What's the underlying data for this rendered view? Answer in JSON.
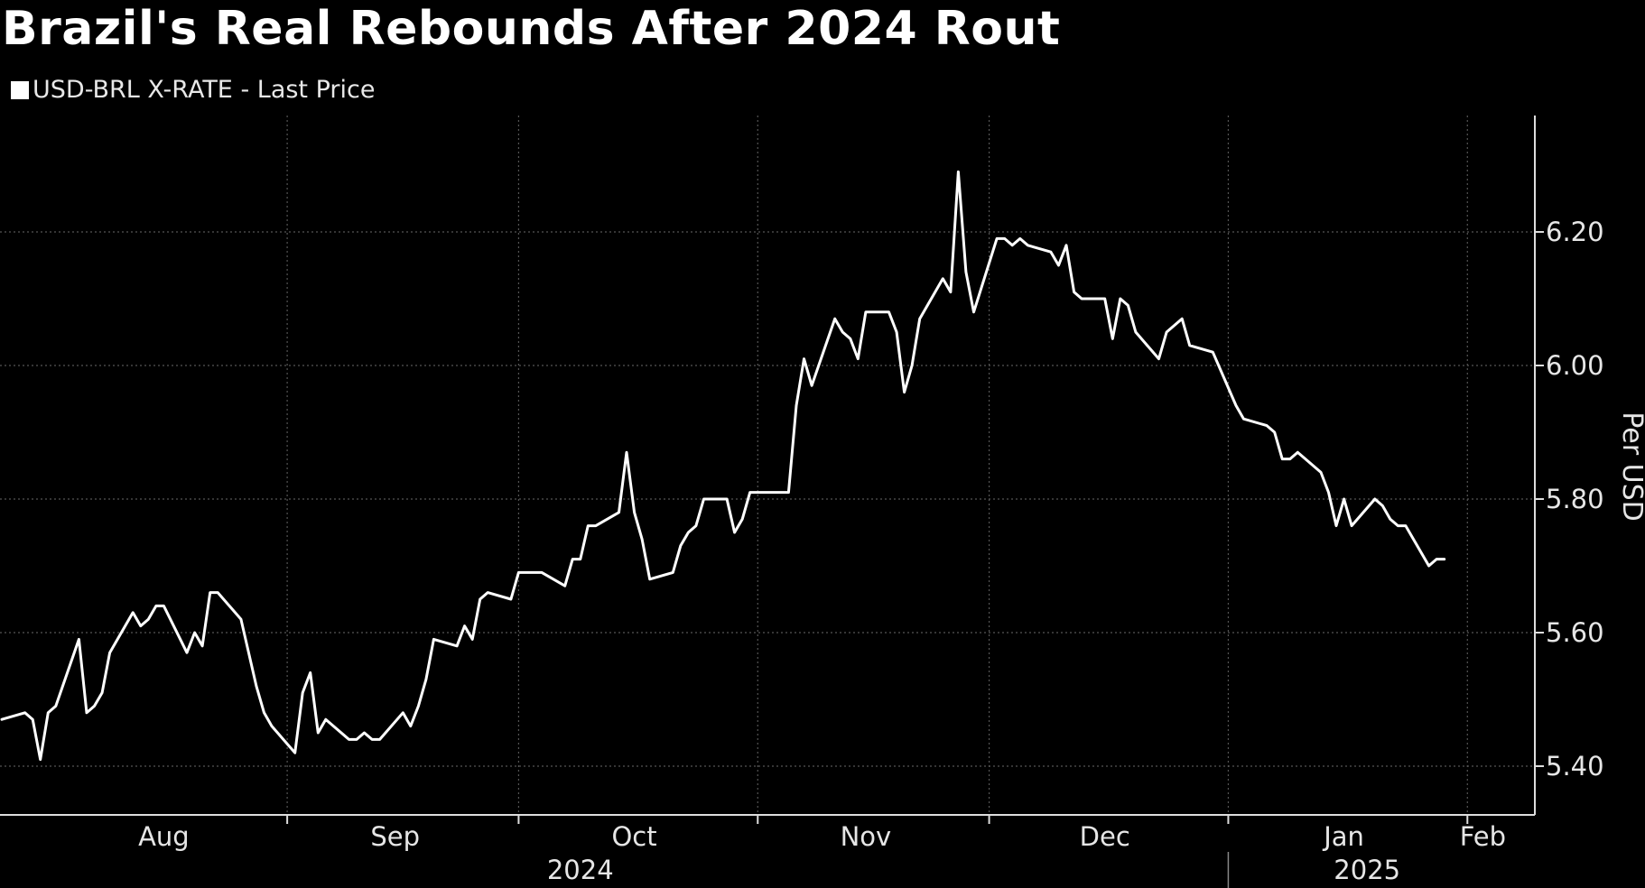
{
  "chart_data": {
    "type": "line",
    "title": "Brazil's Real Rebounds After 2024 Rout",
    "ylabel": "Per USD",
    "xlabel": "",
    "ylim": [
      5.33,
      6.37
    ],
    "yticks": [
      "5.40",
      "5.60",
      "5.80",
      "6.00",
      "6.20"
    ],
    "grid": true,
    "legend_position": "top-left",
    "line_color": "#ffffff",
    "month_labels": [
      "Aug",
      "Sep",
      "Oct",
      "Nov",
      "Dec",
      "Jan",
      "Feb"
    ],
    "year_labels": [
      "2024",
      "2025"
    ],
    "series": [
      {
        "name": "USD-BRL X-RATE - Last Price",
        "points": [
          [
            "2024-07-26",
            5.47
          ],
          [
            "2024-07-29",
            5.48
          ],
          [
            "2024-07-30",
            5.47
          ],
          [
            "2024-07-31",
            5.41
          ],
          [
            "2024-08-01",
            5.48
          ],
          [
            "2024-08-02",
            5.49
          ],
          [
            "2024-08-05",
            5.59
          ],
          [
            "2024-08-06",
            5.48
          ],
          [
            "2024-08-07",
            5.49
          ],
          [
            "2024-08-08",
            5.51
          ],
          [
            "2024-08-09",
            5.57
          ],
          [
            "2024-08-12",
            5.63
          ],
          [
            "2024-08-13",
            5.61
          ],
          [
            "2024-08-14",
            5.62
          ],
          [
            "2024-08-15",
            5.64
          ],
          [
            "2024-08-16",
            5.64
          ],
          [
            "2024-08-19",
            5.57
          ],
          [
            "2024-08-20",
            5.6
          ],
          [
            "2024-08-21",
            5.58
          ],
          [
            "2024-08-22",
            5.66
          ],
          [
            "2024-08-23",
            5.66
          ],
          [
            "2024-08-26",
            5.62
          ],
          [
            "2024-08-27",
            5.57
          ],
          [
            "2024-08-28",
            5.52
          ],
          [
            "2024-08-29",
            5.48
          ],
          [
            "2024-08-30",
            5.46
          ],
          [
            "2024-09-02",
            5.42
          ],
          [
            "2024-09-03",
            5.51
          ],
          [
            "2024-09-04",
            5.54
          ],
          [
            "2024-09-05",
            5.45
          ],
          [
            "2024-09-06",
            5.47
          ],
          [
            "2024-09-09",
            5.44
          ],
          [
            "2024-09-10",
            5.44
          ],
          [
            "2024-09-11",
            5.45
          ],
          [
            "2024-09-12",
            5.44
          ],
          [
            "2024-09-13",
            5.44
          ],
          [
            "2024-09-16",
            5.48
          ],
          [
            "2024-09-17",
            5.46
          ],
          [
            "2024-09-18",
            5.49
          ],
          [
            "2024-09-19",
            5.53
          ],
          [
            "2024-09-20",
            5.59
          ],
          [
            "2024-09-23",
            5.58
          ],
          [
            "2024-09-24",
            5.61
          ],
          [
            "2024-09-25",
            5.59
          ],
          [
            "2024-09-26",
            5.65
          ],
          [
            "2024-09-27",
            5.66
          ],
          [
            "2024-09-30",
            5.65
          ],
          [
            "2024-10-01",
            5.69
          ],
          [
            "2024-10-02",
            5.69
          ],
          [
            "2024-10-03",
            5.69
          ],
          [
            "2024-10-04",
            5.69
          ],
          [
            "2024-10-07",
            5.67
          ],
          [
            "2024-10-08",
            5.71
          ],
          [
            "2024-10-09",
            5.71
          ],
          [
            "2024-10-10",
            5.76
          ],
          [
            "2024-10-11",
            5.76
          ],
          [
            "2024-10-14",
            5.78
          ],
          [
            "2024-10-15",
            5.87
          ],
          [
            "2024-10-16",
            5.78
          ],
          [
            "2024-10-17",
            5.74
          ],
          [
            "2024-10-18",
            5.68
          ],
          [
            "2024-10-21",
            5.69
          ],
          [
            "2024-10-22",
            5.73
          ],
          [
            "2024-10-23",
            5.75
          ],
          [
            "2024-10-24",
            5.76
          ],
          [
            "2024-10-25",
            5.8
          ],
          [
            "2024-10-28",
            5.8
          ],
          [
            "2024-10-29",
            5.75
          ],
          [
            "2024-10-30",
            5.77
          ],
          [
            "2024-10-31",
            5.81
          ],
          [
            "2024-11-01",
            5.81
          ],
          [
            "2024-11-04",
            5.81
          ],
          [
            "2024-11-05",
            5.81
          ],
          [
            "2024-11-06",
            5.94
          ],
          [
            "2024-11-07",
            6.01
          ],
          [
            "2024-11-08",
            5.97
          ],
          [
            "2024-11-11",
            6.07
          ],
          [
            "2024-11-12",
            6.05
          ],
          [
            "2024-11-13",
            6.04
          ],
          [
            "2024-11-14",
            6.01
          ],
          [
            "2024-11-15",
            6.08
          ],
          [
            "2024-11-18",
            6.08
          ],
          [
            "2024-11-19",
            6.05
          ],
          [
            "2024-11-20",
            5.96
          ],
          [
            "2024-11-21",
            6.0
          ],
          [
            "2024-11-22",
            6.07
          ],
          [
            "2024-11-25",
            6.13
          ],
          [
            "2024-11-26",
            6.11
          ],
          [
            "2024-11-27",
            6.29
          ],
          [
            "2024-11-28",
            6.14
          ],
          [
            "2024-11-29",
            6.08
          ],
          [
            "2024-12-02",
            6.19
          ],
          [
            "2024-12-03",
            6.19
          ],
          [
            "2024-12-04",
            6.18
          ],
          [
            "2024-12-05",
            6.19
          ],
          [
            "2024-12-06",
            6.18
          ],
          [
            "2024-12-09",
            6.17
          ],
          [
            "2024-12-10",
            6.15
          ],
          [
            "2024-12-11",
            6.18
          ],
          [
            "2024-12-12",
            6.11
          ],
          [
            "2024-12-13",
            6.1
          ],
          [
            "2024-12-16",
            6.1
          ],
          [
            "2024-12-17",
            6.04
          ],
          [
            "2024-12-18",
            6.1
          ],
          [
            "2024-12-19",
            6.09
          ],
          [
            "2024-12-20",
            6.05
          ],
          [
            "2024-12-23",
            6.01
          ],
          [
            "2024-12-24",
            6.05
          ],
          [
            "2024-12-26",
            6.07
          ],
          [
            "2024-12-27",
            6.03
          ],
          [
            "2024-12-30",
            6.02
          ],
          [
            "2025-01-02",
            5.94
          ],
          [
            "2025-01-03",
            5.92
          ],
          [
            "2025-01-06",
            5.91
          ],
          [
            "2025-01-07",
            5.9
          ],
          [
            "2025-01-08",
            5.86
          ],
          [
            "2025-01-09",
            5.86
          ],
          [
            "2025-01-10",
            5.87
          ],
          [
            "2025-01-13",
            5.84
          ],
          [
            "2025-01-14",
            5.81
          ],
          [
            "2025-01-15",
            5.76
          ],
          [
            "2025-01-16",
            5.8
          ],
          [
            "2025-01-17",
            5.76
          ],
          [
            "2025-01-20",
            5.8
          ],
          [
            "2025-01-21",
            5.79
          ],
          [
            "2025-01-22",
            5.77
          ],
          [
            "2025-01-23",
            5.76
          ],
          [
            "2025-01-24",
            5.76
          ],
          [
            "2025-01-27",
            5.7
          ],
          [
            "2025-01-28",
            5.71
          ],
          [
            "2025-01-29",
            5.71
          ]
        ]
      }
    ]
  }
}
